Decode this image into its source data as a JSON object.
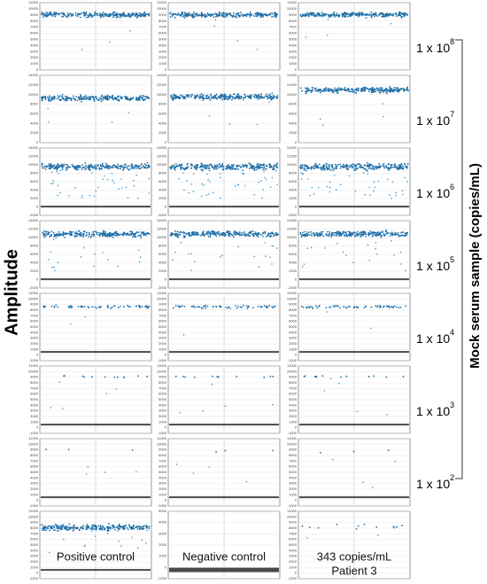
{
  "y_axis_label": "Amplitude",
  "side_label": "Mock serum sample (copies/mL)",
  "rows": [
    {
      "label": {
        "base": "1 x 10",
        "exponent": "8"
      },
      "panels": [
        {
          "yticks": [
            0,
            1000,
            2000,
            3000,
            4000,
            5000,
            6000,
            7000,
            8000,
            9000,
            10000,
            11000
          ]
        },
        {
          "yticks": [
            0,
            1000,
            2000,
            3000,
            4000,
            5000,
            6000,
            7000,
            8000,
            9000,
            10000,
            11000
          ]
        },
        {
          "yticks": [
            0,
            1000,
            2000,
            3000,
            4000,
            5000,
            6000,
            7000,
            8000,
            9000,
            10000,
            11000
          ]
        }
      ]
    },
    {
      "label": {
        "base": "1 x 10",
        "exponent": "7"
      },
      "panels": [
        {
          "yticks": [
            0,
            2000,
            4000,
            6000,
            8000,
            10000,
            12000,
            14000
          ]
        },
        {
          "yticks": [
            0,
            2000,
            4000,
            6000,
            8000,
            10000,
            12000,
            14000
          ]
        },
        {
          "yticks": [
            0,
            2000,
            4000,
            6000,
            8000,
            10000,
            12000,
            14000
          ]
        }
      ]
    },
    {
      "label": {
        "base": "1 x 10",
        "exponent": "6"
      },
      "panels": [
        {
          "yticks": [
            -2000,
            0,
            2000,
            4000,
            6000,
            8000,
            10000,
            12000,
            14000
          ]
        },
        {
          "yticks": [
            -2000,
            0,
            2000,
            4000,
            6000,
            8000,
            10000,
            12000,
            14000
          ]
        },
        {
          "yticks": [
            -2000,
            0,
            2000,
            4000,
            6000,
            8000,
            10000,
            12000,
            14000
          ]
        }
      ]
    },
    {
      "label": {
        "base": "1 x 10",
        "exponent": "5"
      },
      "panels": [
        {
          "yticks": [
            -2000,
            0,
            2000,
            4000,
            6000,
            8000,
            10000,
            12000,
            14000
          ]
        },
        {
          "yticks": [
            -2000,
            0,
            2000,
            4000,
            6000,
            8000,
            10000,
            12000,
            14000
          ]
        },
        {
          "yticks": [
            -2000,
            0,
            2000,
            4000,
            6000,
            8000,
            10000,
            12000,
            14000
          ]
        }
      ]
    },
    {
      "label": {
        "base": "1 x 10",
        "exponent": "4"
      },
      "panels": [
        {
          "yticks": [
            -1000,
            0,
            1000,
            2000,
            3000,
            4000,
            5000,
            6000,
            7000,
            8000,
            9000,
            10000,
            11000
          ]
        },
        {
          "yticks": [
            -1000,
            0,
            1000,
            2000,
            3000,
            4000,
            5000,
            6000,
            7000,
            8000,
            9000,
            10000,
            11000
          ]
        },
        {
          "yticks": [
            -1000,
            0,
            1000,
            2000,
            3000,
            4000,
            5000,
            6000,
            7000,
            8000,
            9000,
            10000,
            11000
          ]
        }
      ]
    },
    {
      "label": {
        "base": "1 x 10",
        "exponent": "3"
      },
      "panels": [
        {
          "yticks": [
            -1000,
            0,
            1000,
            2000,
            3000,
            4000,
            5000,
            6000,
            7000,
            8000,
            9000,
            10000,
            11000
          ]
        },
        {
          "yticks": [
            -1000,
            0,
            1000,
            2000,
            3000,
            4000,
            5000,
            6000,
            7000,
            8000,
            9000,
            10000,
            11000
          ]
        },
        {
          "yticks": [
            -1000,
            0,
            1000,
            2000,
            3000,
            4000,
            5000,
            6000,
            7000,
            8000,
            9000,
            10000,
            11000
          ]
        }
      ]
    },
    {
      "label": {
        "base": "1 x 10",
        "exponent": "2"
      },
      "panels": [
        {
          "yticks": [
            -1000,
            0,
            1000,
            2000,
            3000,
            4000,
            5000,
            6000,
            7000,
            8000,
            9000,
            10000,
            11000
          ]
        },
        {
          "yticks": [
            -1000,
            0,
            1000,
            2000,
            3000,
            4000,
            5000,
            6000,
            7000,
            8000,
            9000,
            10000,
            11000
          ]
        },
        {
          "yticks": [
            -1000,
            0,
            1000,
            2000,
            3000,
            4000,
            5000,
            6000,
            7000,
            8000,
            9000,
            10000,
            11000
          ]
        }
      ]
    },
    {
      "panels": [
        {
          "yticks": [
            -1000,
            0,
            1000,
            2000,
            3000,
            4000,
            5000,
            6000,
            7000,
            8000,
            9000,
            10000,
            11000
          ],
          "caption": [
            "Positive control"
          ]
        },
        {
          "yticks": [
            -1000,
            0,
            1000,
            2000,
            3000,
            4000,
            5000
          ],
          "caption": [
            "Negative control"
          ]
        },
        {
          "yticks": [
            -1000,
            0,
            1000,
            2000,
            3000,
            4000,
            5000,
            6000,
            7000,
            8000,
            9000,
            10000,
            11000
          ],
          "caption": [
            "343 copies/mL",
            "Patient 3"
          ]
        }
      ]
    }
  ]
}
